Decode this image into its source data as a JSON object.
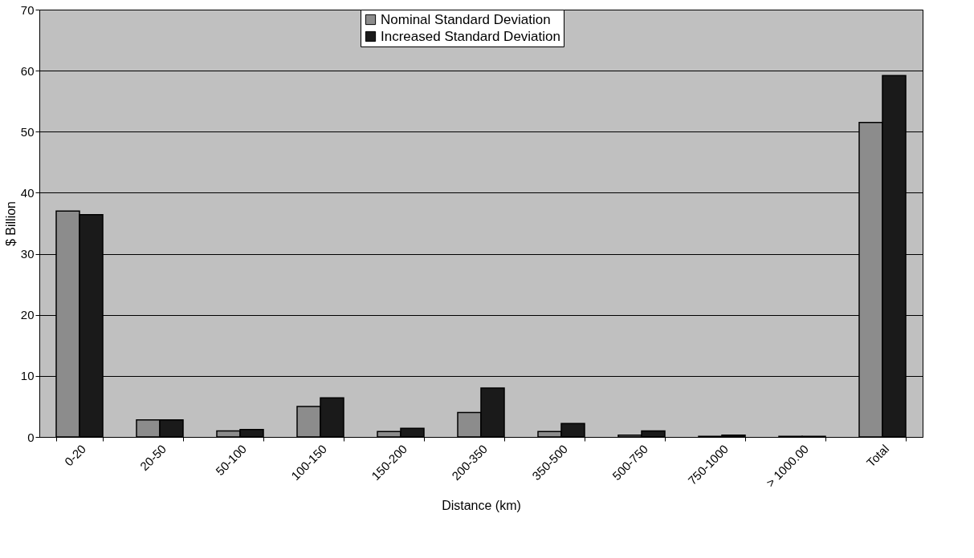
{
  "chart_data": {
    "type": "bar",
    "xlabel": "Distance (km)",
    "ylabel": "$ Billion",
    "categories": [
      "0-20",
      "20-50",
      "50-100",
      "100-150",
      "150-200",
      "200-350",
      "350-500",
      "500-750",
      "750-1000",
      "> 1000.00",
      "Total"
    ],
    "series": [
      {
        "name": "Nominal Standard Deviation",
        "color": "#8c8c8c",
        "values": [
          37,
          2.8,
          1.0,
          5.0,
          0.9,
          4.0,
          0.9,
          0.3,
          0.1,
          0.1,
          51.5
        ]
      },
      {
        "name": "Increased Standard Deviation",
        "color": "#1a1a1a",
        "values": [
          36.4,
          2.8,
          1.2,
          6.4,
          1.4,
          8.0,
          2.2,
          1.0,
          0.3,
          0.1,
          59.2
        ]
      }
    ],
    "ylim": [
      0,
      70
    ],
    "yticks": [
      0,
      10,
      20,
      30,
      40,
      50,
      60,
      70
    ],
    "grid": "y",
    "legend": "top"
  }
}
